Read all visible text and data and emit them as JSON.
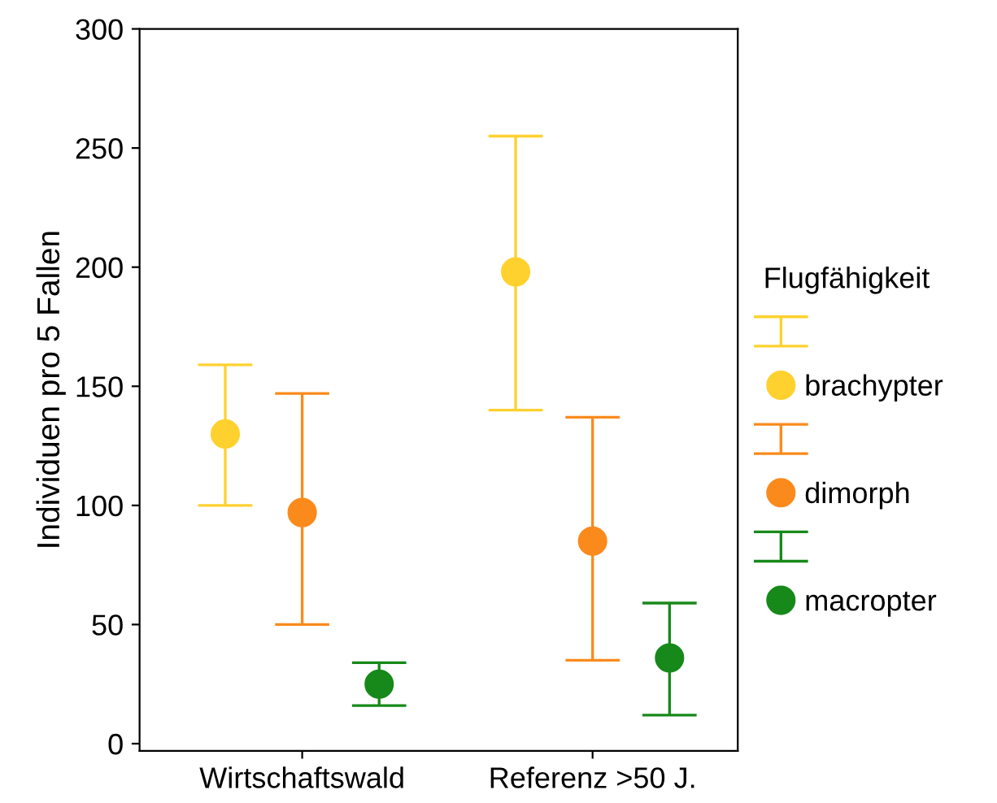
{
  "chart_data": {
    "type": "scatter",
    "ylabel": "Individuen pro 5 Fallen",
    "legend_title": "Flugfähigkeit",
    "categories": [
      "Wirtschaftswald",
      "Referenz >50 J."
    ],
    "series": [
      {
        "name": "brachypter",
        "color": "#ffd12e",
        "values": [
          130,
          198
        ],
        "errors": [
          [
            100,
            159
          ],
          [
            140,
            255
          ]
        ]
      },
      {
        "name": "dimorph",
        "color": "#fb8a1c",
        "values": [
          97,
          85
        ],
        "errors": [
          [
            50,
            147
          ],
          [
            35,
            137
          ]
        ]
      },
      {
        "name": "macropter",
        "color": "#17891a",
        "values": [
          25,
          36
        ],
        "errors": [
          [
            16,
            34
          ],
          [
            12,
            59
          ]
        ]
      }
    ],
    "ylim": [
      -3,
      300
    ],
    "yticks": [
      0,
      50,
      100,
      150,
      200,
      250,
      300
    ],
    "grid": false,
    "legend": "right",
    "marker": "circle"
  }
}
